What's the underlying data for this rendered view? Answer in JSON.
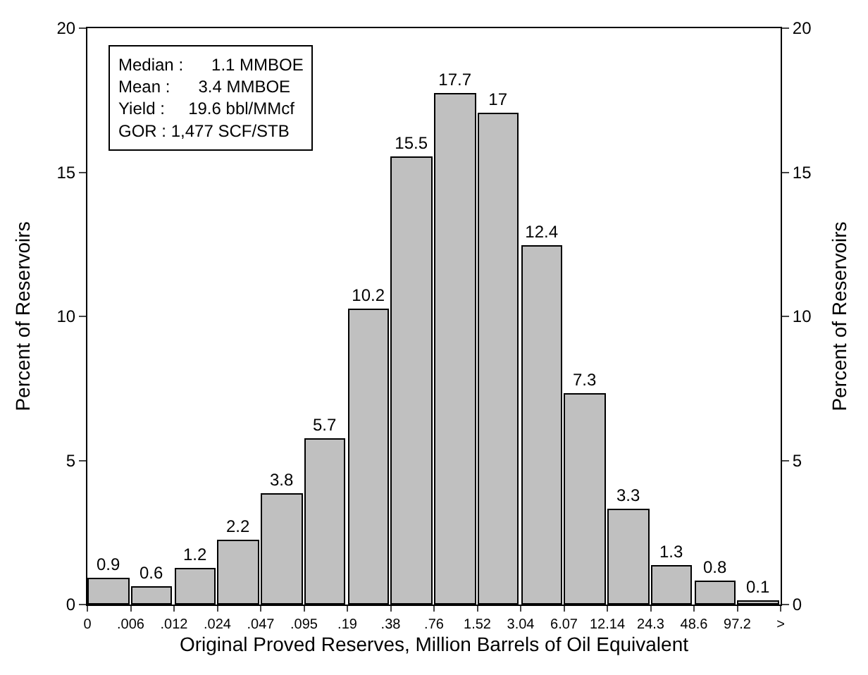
{
  "chart_data": {
    "type": "bar",
    "xlabel": "Original Proved Reserves, Million Barrels of Oil Equivalent",
    "ylabel": "Percent of Reservoirs",
    "y2label": "Percent of Reservoirs",
    "categories": [
      "0",
      ".006",
      ".012",
      ".024",
      ".047",
      ".095",
      ".19",
      ".38",
      ".76",
      "1.52",
      "3.04",
      "6.07",
      "12.14",
      "24.3",
      "48.6",
      "97.2",
      ">"
    ],
    "values": [
      0.9,
      0.6,
      1.2,
      2.2,
      3.8,
      5.7,
      10.2,
      15.5,
      17.7,
      17,
      12.4,
      7.3,
      3.3,
      1.3,
      0.8,
      0.1,
      null
    ],
    "color": "#c0c0c0",
    "data_labels": true,
    "ylim": [
      0,
      20
    ],
    "yticks": [
      0,
      5,
      10,
      15,
      20
    ],
    "y2lim": [
      0,
      20
    ],
    "y2ticks": [
      0,
      5,
      10,
      15,
      20
    ],
    "annotations": [
      "Median :      1.1 MMBOE",
      "Mean :      3.4 MMBOE",
      "Yield :     19.6 bbl/MMcf",
      "GOR : 1,477 SCF/STB"
    ]
  }
}
